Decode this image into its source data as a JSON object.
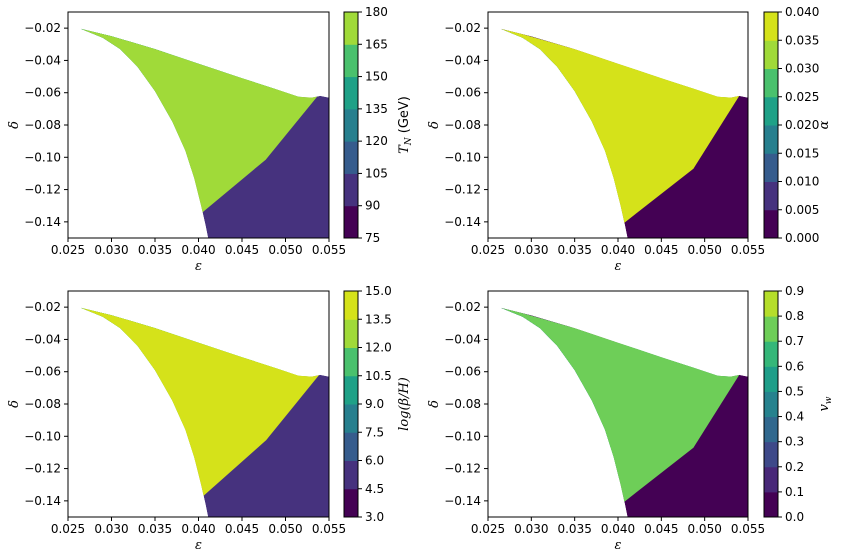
{
  "chart_data": [
    {
      "type": "contour",
      "panel": "top-left",
      "xlabel": "ε",
      "ylabel": "δ",
      "xlim": [
        0.025,
        0.055
      ],
      "ylim": [
        -0.15,
        -0.01
      ],
      "xticks": [
        "0.025",
        "0.030",
        "0.035",
        "0.040",
        "0.045",
        "0.050",
        "0.055"
      ],
      "yticks": [
        "−0.02",
        "−0.04",
        "−0.06",
        "−0.08",
        "−0.10",
        "−0.12",
        "−0.14"
      ],
      "colorbar": {
        "label_main": "T",
        "label_sub": "N",
        "label_unit": " (GeV)",
        "levels": [
          "75",
          "90",
          "105",
          "120",
          "135",
          "150",
          "165",
          "180"
        ],
        "colors": [
          "#440154",
          "#46327e",
          "#365c8d",
          "#277f8e",
          "#1fa187",
          "#4ac16d",
          "#a0da39",
          "#fde725"
        ]
      },
      "bands": [
        "#46327e",
        "#365c8d",
        "#277f8e",
        "#1fa187",
        "#4ac16d",
        "#a0da39"
      ]
    },
    {
      "type": "contour",
      "panel": "top-right",
      "xlabel": "ε",
      "ylabel": "δ",
      "xlim": [
        0.025,
        0.055
      ],
      "ylim": [
        -0.15,
        -0.01
      ],
      "xticks": [
        "0.025",
        "0.030",
        "0.035",
        "0.040",
        "0.045",
        "0.050",
        "0.055"
      ],
      "yticks": [
        "−0.02",
        "−0.04",
        "−0.06",
        "−0.08",
        "−0.10",
        "−0.12",
        "−0.14"
      ],
      "colorbar": {
        "label_main": "α",
        "label_sub": "",
        "label_unit": "",
        "levels": [
          "0.000",
          "0.005",
          "0.010",
          "0.015",
          "0.020",
          "0.025",
          "0.030",
          "0.035",
          "0.040"
        ],
        "colors": [
          "#440154",
          "#46327e",
          "#365c8d",
          "#277f8e",
          "#1fa187",
          "#4ac16d",
          "#a0da39",
          "#d5e21a",
          "#fde725"
        ]
      },
      "bands": [
        "#440154",
        "#46327e",
        "#365c8d",
        "#277f8e",
        "#1fa187",
        "#4ac16d",
        "#a0da39",
        "#d5e21a"
      ]
    },
    {
      "type": "contour",
      "panel": "bottom-left",
      "xlabel": "ε",
      "ylabel": "δ",
      "xlim": [
        0.025,
        0.055
      ],
      "ylim": [
        -0.15,
        -0.01
      ],
      "xticks": [
        "0.025",
        "0.030",
        "0.035",
        "0.040",
        "0.045",
        "0.050",
        "0.055"
      ],
      "yticks": [
        "−0.02",
        "−0.04",
        "−0.06",
        "−0.08",
        "−0.10",
        "−0.12",
        "−0.14"
      ],
      "colorbar": {
        "label_main": "log(β/H)",
        "label_sub": "",
        "label_unit": "",
        "levels": [
          "3.0",
          "4.5",
          "6.0",
          "7.5",
          "9.0",
          "10.5",
          "12.0",
          "13.5",
          "15.0"
        ],
        "colors": [
          "#440154",
          "#46327e",
          "#365c8d",
          "#277f8e",
          "#1fa187",
          "#4ac16d",
          "#a0da39",
          "#d5e21a",
          "#fde725"
        ]
      },
      "bands": [
        "#46327e",
        "#365c8d",
        "#277f8e",
        "#1fa187",
        "#4ac16d",
        "#a0da39",
        "#d5e21a"
      ]
    },
    {
      "type": "contour",
      "panel": "bottom-right",
      "xlabel": "ε",
      "ylabel": "δ",
      "xlim": [
        0.025,
        0.055
      ],
      "ylim": [
        -0.15,
        -0.01
      ],
      "xticks": [
        "0.025",
        "0.030",
        "0.035",
        "0.040",
        "0.045",
        "0.050",
        "0.055"
      ],
      "yticks": [
        "−0.02",
        "−0.04",
        "−0.06",
        "−0.08",
        "−0.10",
        "−0.12",
        "−0.14"
      ],
      "colorbar": {
        "label_main": "v",
        "label_sub": "w",
        "label_unit": "",
        "levels": [
          "0.0",
          "0.1",
          "0.2",
          "0.3",
          "0.4",
          "0.5",
          "0.6",
          "0.7",
          "0.8",
          "0.9"
        ],
        "colors": [
          "#440154",
          "#482878",
          "#3e4989",
          "#31688e",
          "#26828e",
          "#1f9e89",
          "#35b779",
          "#6ece58",
          "#b5de2b",
          "#fde725"
        ]
      },
      "bands": [
        "#440154",
        "#482878",
        "#3e4989",
        "#31688e",
        "#26828e",
        "#1f9e89",
        "#35b779",
        "#6ece58"
      ]
    }
  ]
}
